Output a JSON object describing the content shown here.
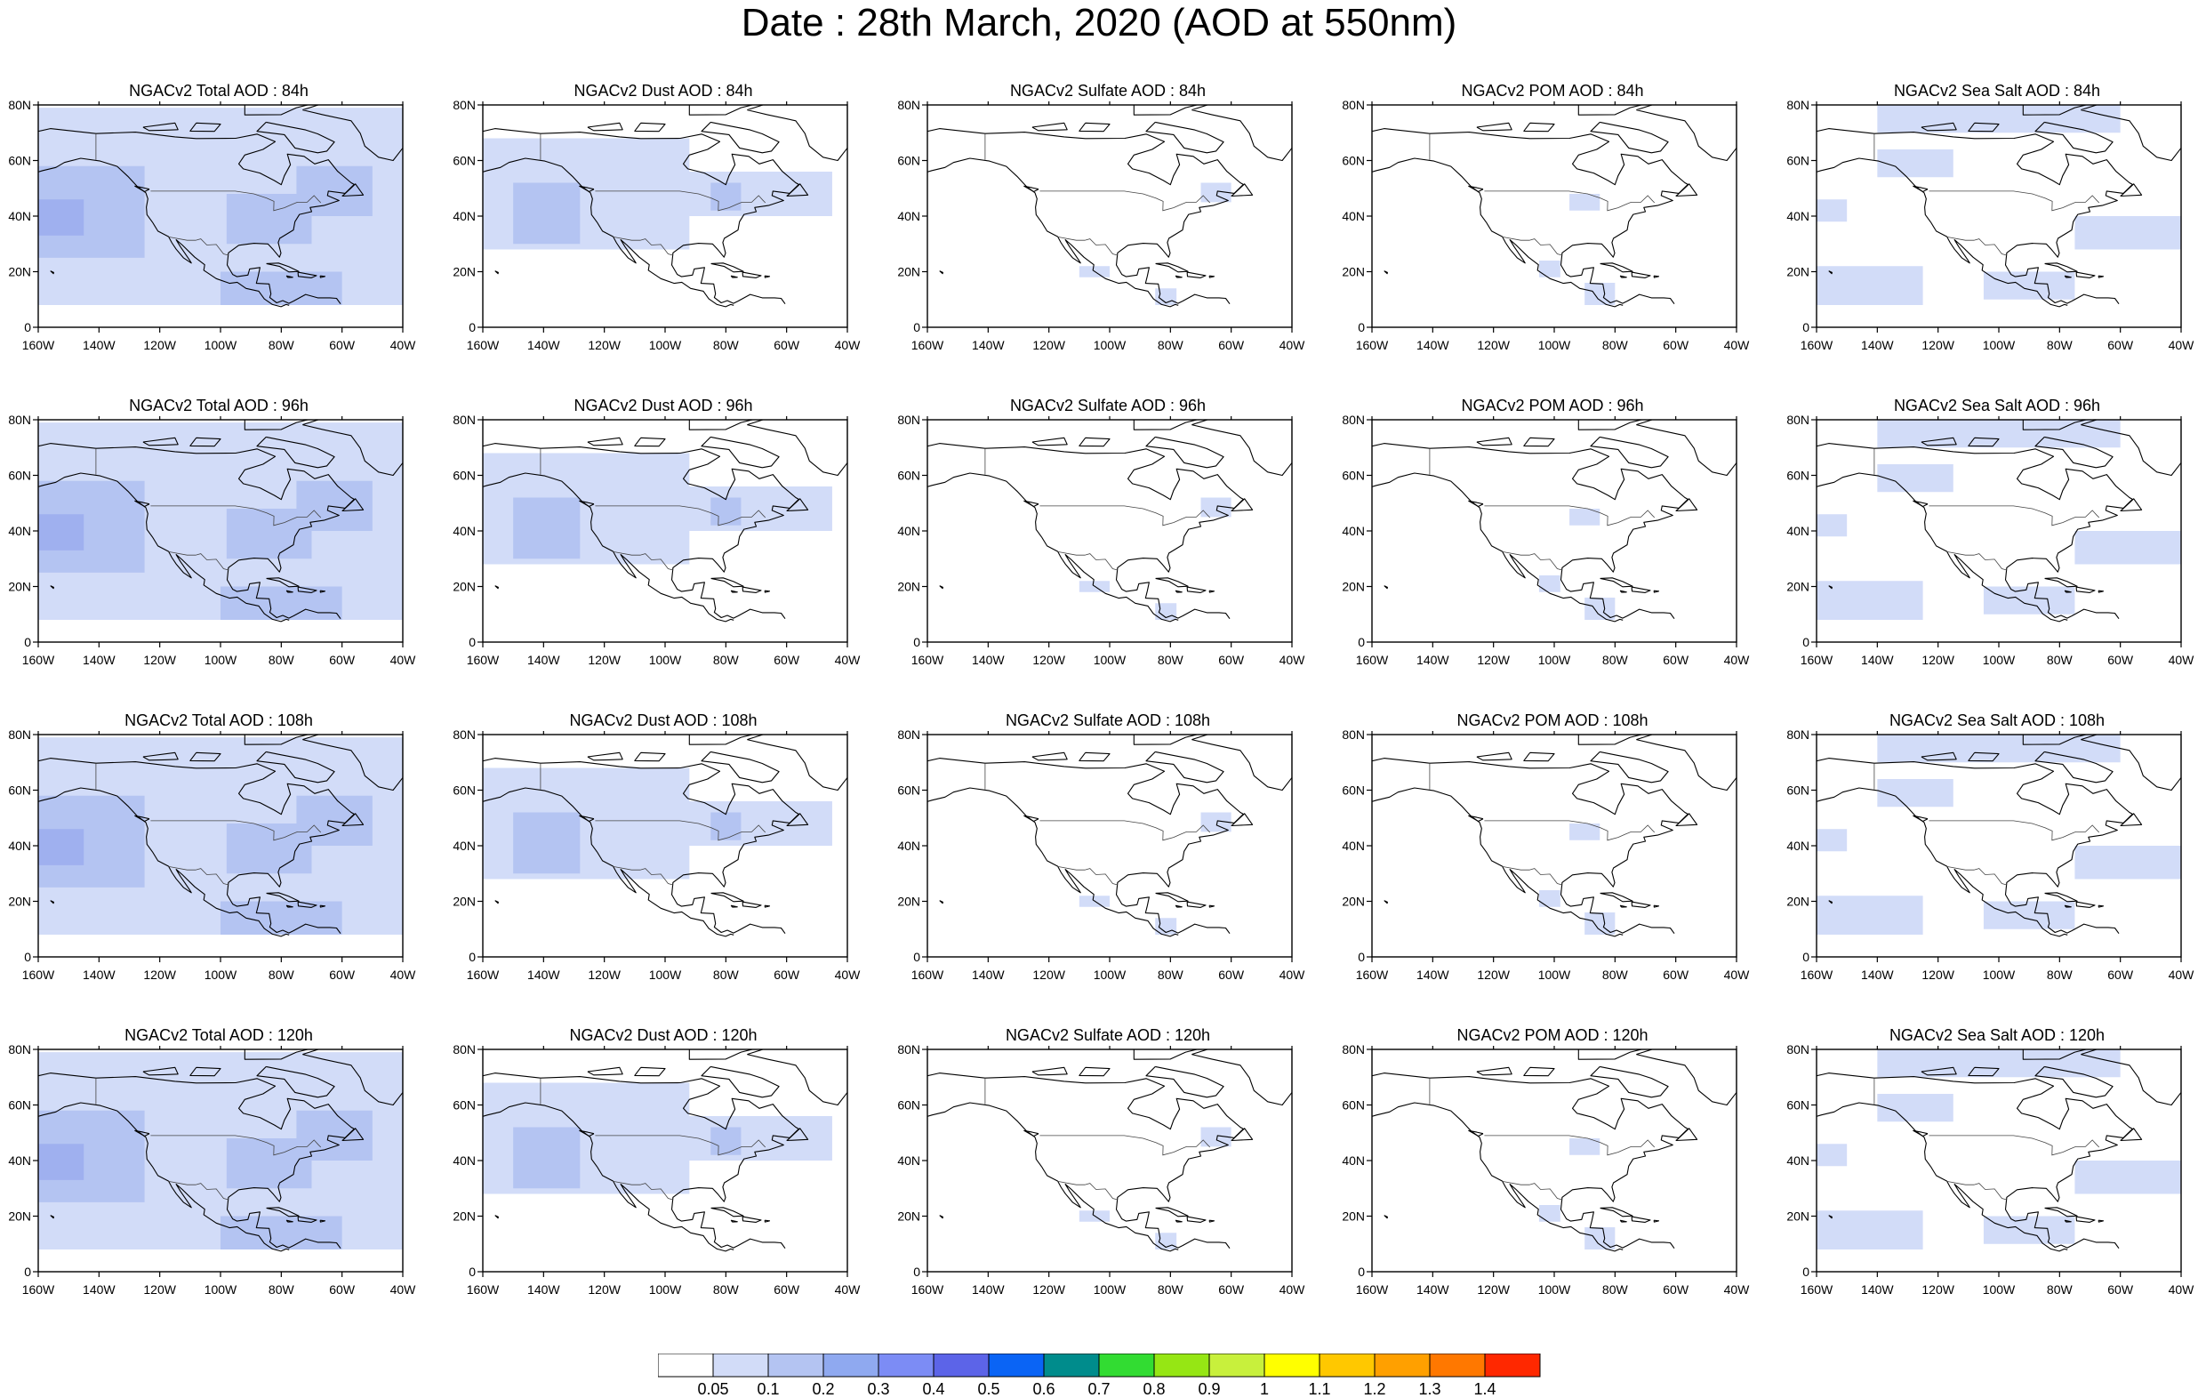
{
  "page": {
    "title": "Date : 28th March, 2020 (AOD at 550nm)"
  },
  "map": {
    "lon_range": [
      -160,
      -40
    ],
    "lat_range": [
      0,
      80
    ],
    "lon_ticks": [
      "160W",
      "140W",
      "120W",
      "100W",
      "80W",
      "60W",
      "40W"
    ],
    "lat_ticks": [
      "80N",
      "60N",
      "40N",
      "20N",
      "0"
    ],
    "colors": {
      "background": "#ffffff",
      "coastline": "#000000",
      "light_blue": "#d2dcf8",
      "mid_blue": "#b4c4f2",
      "deeper_blue": "#9fb0ef"
    }
  },
  "panels": [
    {
      "title": "NGACv2 Total AOD : 84h",
      "species": "total",
      "hour": "84h"
    },
    {
      "title": "NGACv2 Dust AOD : 84h",
      "species": "dust",
      "hour": "84h"
    },
    {
      "title": "NGACv2 Sulfate AOD : 84h",
      "species": "sulfate",
      "hour": "84h"
    },
    {
      "title": "NGACv2 POM AOD : 84h",
      "species": "pom",
      "hour": "84h"
    },
    {
      "title": "NGACv2 Sea Salt AOD : 84h",
      "species": "seasalt",
      "hour": "84h"
    },
    {
      "title": "NGACv2 Total AOD : 96h",
      "species": "total",
      "hour": "96h"
    },
    {
      "title": "NGACv2 Dust AOD : 96h",
      "species": "dust",
      "hour": "96h"
    },
    {
      "title": "NGACv2 Sulfate AOD : 96h",
      "species": "sulfate",
      "hour": "96h"
    },
    {
      "title": "NGACv2 POM AOD : 96h",
      "species": "pom",
      "hour": "96h"
    },
    {
      "title": "NGACv2 Sea Salt AOD : 96h",
      "species": "seasalt",
      "hour": "96h"
    },
    {
      "title": "NGACv2 Total AOD : 108h",
      "species": "total",
      "hour": "108h"
    },
    {
      "title": "NGACv2 Dust AOD : 108h",
      "species": "dust",
      "hour": "108h"
    },
    {
      "title": "NGACv2 Sulfate AOD : 108h",
      "species": "sulfate",
      "hour": "108h"
    },
    {
      "title": "NGACv2 POM AOD : 108h",
      "species": "pom",
      "hour": "108h"
    },
    {
      "title": "NGACv2 Sea Salt AOD : 108h",
      "species": "seasalt",
      "hour": "108h"
    },
    {
      "title": "NGACv2 Total AOD : 120h",
      "species": "total",
      "hour": "120h"
    },
    {
      "title": "NGACv2 Dust AOD : 120h",
      "species": "dust",
      "hour": "120h"
    },
    {
      "title": "NGACv2 Sulfate AOD : 120h",
      "species": "sulfate",
      "hour": "120h"
    },
    {
      "title": "NGACv2 POM AOD : 120h",
      "species": "pom",
      "hour": "120h"
    },
    {
      "title": "NGACv2 Sea Salt  AOD : 120h",
      "species": "seasalt",
      "hour": "120h"
    }
  ],
  "colorbar": {
    "labels": [
      "0.05",
      "0.1",
      "0.2",
      "0.3",
      "0.4",
      "0.5",
      "0.6",
      "0.7",
      "0.8",
      "0.9",
      "1",
      "1.1",
      "1.2",
      "1.3",
      "1.4"
    ],
    "colors": [
      "#ffffff",
      "#d2dcf8",
      "#b4c4f2",
      "#8fa9f0",
      "#7c8cf5",
      "#5c64e8",
      "#0a64f5",
      "#008c8c",
      "#32dc32",
      "#96e614",
      "#c8f03c",
      "#ffff00",
      "#ffc800",
      "#ffa000",
      "#ff7800",
      "#ff2800"
    ]
  }
}
